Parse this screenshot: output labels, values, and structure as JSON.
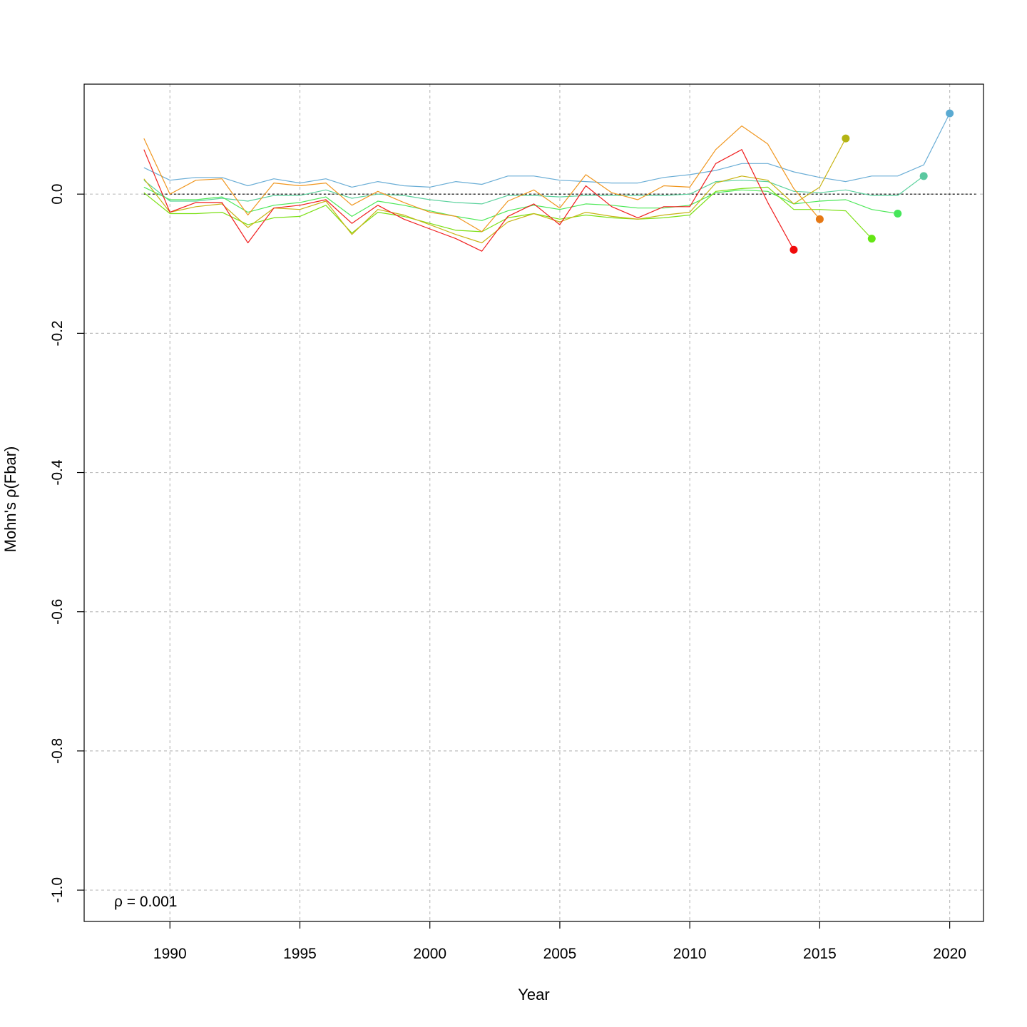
{
  "chart_data": {
    "type": "line",
    "title": "",
    "xlabel": "Year",
    "ylabel": "Mohn's ρ(Fbar)",
    "xlim": [
      1986.7,
      2021.3
    ],
    "ylim": [
      -1.045,
      0.158
    ],
    "xticks": [
      1990,
      1995,
      2000,
      2005,
      2010,
      2015,
      2020
    ],
    "yticks": [
      0.0,
      -0.2,
      -0.4,
      -0.6,
      -0.8,
      -1.0
    ],
    "xtick_labels": [
      "1990",
      "1995",
      "2000",
      "2005",
      "2010",
      "2015",
      "2020"
    ],
    "ytick_labels": [
      "0.0",
      "-0.2",
      "-0.4",
      "-0.6",
      "-0.8",
      "-1.0"
    ],
    "grid": true,
    "reference_line": 0.0,
    "annotation": "ρ = 0.001",
    "series": [
      {
        "color": "#6baed6",
        "x": [
          1989,
          1990,
          1991,
          1992,
          1993,
          1994,
          1995,
          1996,
          1997,
          1998,
          1999,
          2000,
          2001,
          2002,
          2003,
          2004,
          2005,
          2006,
          2007,
          2008,
          2009,
          2010,
          2011,
          2012,
          2013,
          2014,
          2015,
          2016,
          2017,
          2018,
          2019,
          2020
        ],
        "y": [
          0.038,
          0.02,
          0.024,
          0.024,
          0.012,
          0.022,
          0.016,
          0.022,
          0.01,
          0.018,
          0.012,
          0.01,
          0.018,
          0.014,
          0.026,
          0.026,
          0.02,
          0.018,
          0.016,
          0.016,
          0.024,
          0.028,
          0.034,
          0.044,
          0.044,
          0.032,
          0.024,
          0.018,
          0.026,
          0.026,
          0.042,
          0.116
        ]
      },
      {
        "color": "#5cd29e",
        "x": [
          1989,
          1990,
          1991,
          1992,
          1993,
          1994,
          1995,
          1996,
          1997,
          1998,
          1999,
          2000,
          2001,
          2002,
          2003,
          2004,
          2005,
          2006,
          2007,
          2008,
          2009,
          2010,
          2011,
          2012,
          2013,
          2014,
          2015,
          2016,
          2017,
          2018,
          2019
        ],
        "y": [
          0.02,
          -0.01,
          -0.01,
          -0.006,
          -0.01,
          -0.002,
          -0.002,
          0.006,
          -0.006,
          0.0,
          -0.002,
          -0.008,
          -0.012,
          -0.014,
          -0.002,
          -0.002,
          -0.004,
          -0.002,
          -0.002,
          -0.002,
          -0.002,
          0.0,
          0.018,
          0.02,
          0.018,
          0.004,
          0.002,
          0.006,
          -0.002,
          -0.002,
          0.026
        ]
      },
      {
        "color": "#4de858",
        "x": [
          1989,
          1990,
          1991,
          1992,
          1993,
          1994,
          1995,
          1996,
          1997,
          1998,
          1999,
          2000,
          2001,
          2002,
          2003,
          2004,
          2005,
          2006,
          2007,
          2008,
          2009,
          2010,
          2011,
          2012,
          2013,
          2014,
          2015,
          2016,
          2017,
          2018
        ],
        "y": [
          0.01,
          -0.008,
          -0.008,
          -0.004,
          -0.026,
          -0.016,
          -0.012,
          -0.004,
          -0.032,
          -0.01,
          -0.016,
          -0.024,
          -0.032,
          -0.038,
          -0.024,
          -0.016,
          -0.022,
          -0.014,
          -0.016,
          -0.02,
          -0.02,
          -0.016,
          0.002,
          0.006,
          0.004,
          -0.014,
          -0.01,
          -0.008,
          -0.022,
          -0.028
        ]
      },
      {
        "color": "#7be014",
        "x": [
          1989,
          1990,
          1991,
          1992,
          1993,
          1994,
          1995,
          1996,
          1997,
          1998,
          1999,
          2000,
          2001,
          2002,
          2003,
          2004,
          2005,
          2006,
          2007,
          2008,
          2009,
          2010,
          2011,
          2012,
          2013,
          2014,
          2015,
          2016,
          2017
        ],
        "y": [
          0.002,
          -0.028,
          -0.028,
          -0.026,
          -0.044,
          -0.034,
          -0.032,
          -0.016,
          -0.056,
          -0.026,
          -0.032,
          -0.042,
          -0.052,
          -0.054,
          -0.034,
          -0.028,
          -0.036,
          -0.03,
          -0.034,
          -0.036,
          -0.034,
          -0.03,
          0.004,
          0.008,
          0.01,
          -0.022,
          -0.022,
          -0.024,
          -0.064
        ]
      },
      {
        "color": "#c8b414",
        "x": [
          1989,
          1990,
          1991,
          1992,
          1993,
          1994,
          1995,
          1996,
          1997,
          1998,
          1999,
          2000,
          2001,
          2002,
          2003,
          2004,
          2005,
          2006,
          2007,
          2008,
          2009,
          2010,
          2011,
          2012,
          2013,
          2014,
          2015,
          2016
        ],
        "y": [
          0.022,
          -0.026,
          -0.018,
          -0.014,
          -0.048,
          -0.02,
          -0.022,
          -0.01,
          -0.058,
          -0.022,
          -0.03,
          -0.044,
          -0.058,
          -0.07,
          -0.04,
          -0.028,
          -0.04,
          -0.026,
          -0.032,
          -0.036,
          -0.03,
          -0.026,
          0.016,
          0.026,
          0.02,
          -0.014,
          0.01,
          0.08
        ]
      },
      {
        "color": "#f0961e",
        "x": [
          1989,
          1990,
          1991,
          1992,
          1993,
          1994,
          1995,
          1996,
          1997,
          1998,
          1999,
          2000,
          2001,
          2002,
          2003,
          2004,
          2005,
          2006,
          2007,
          2008,
          2009,
          2010,
          2011,
          2012,
          2013,
          2014,
          2015
        ],
        "y": [
          0.08,
          0.0,
          0.02,
          0.022,
          -0.03,
          0.016,
          0.012,
          0.016,
          -0.016,
          0.004,
          -0.012,
          -0.026,
          -0.032,
          -0.054,
          -0.01,
          0.006,
          -0.02,
          0.028,
          0.002,
          -0.008,
          0.012,
          0.01,
          0.064,
          0.098,
          0.072,
          0.008,
          -0.036
        ]
      },
      {
        "color": "#f01e1e",
        "x": [
          1989,
          1990,
          1991,
          1992,
          1993,
          1994,
          1995,
          1996,
          1997,
          1998,
          1999,
          2000,
          2001,
          2002,
          2003,
          2004,
          2005,
          2006,
          2007,
          2008,
          2009,
          2010,
          2011,
          2012,
          2013,
          2014
        ],
        "y": [
          0.064,
          -0.026,
          -0.012,
          -0.012,
          -0.07,
          -0.02,
          -0.016,
          -0.008,
          -0.042,
          -0.016,
          -0.036,
          -0.05,
          -0.064,
          -0.082,
          -0.032,
          -0.014,
          -0.044,
          0.012,
          -0.018,
          -0.034,
          -0.018,
          -0.018,
          0.044,
          0.064,
          -0.012,
          -0.08
        ]
      }
    ],
    "endpoints": [
      {
        "x": 2014,
        "y": -0.08,
        "color": "#f00a0a"
      },
      {
        "x": 2015,
        "y": -0.036,
        "color": "#e67814"
      },
      {
        "x": 2016,
        "y": 0.08,
        "color": "#b4b414"
      },
      {
        "x": 2017,
        "y": -0.064,
        "color": "#64e614"
      },
      {
        "x": 2018,
        "y": -0.028,
        "color": "#46e65a"
      },
      {
        "x": 2019,
        "y": 0.026,
        "color": "#5ac8a0"
      },
      {
        "x": 2020,
        "y": 0.116,
        "color": "#5aaad2"
      }
    ]
  }
}
